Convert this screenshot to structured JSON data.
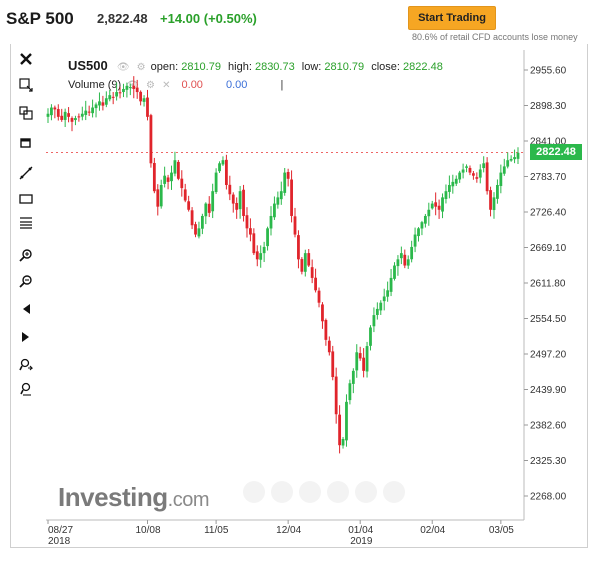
{
  "header": {
    "title": "S&P 500",
    "price": "2,822.48",
    "change": "+14.00 (+0.50%)",
    "cta_label": "Start Trading",
    "disclaimer": "80.6% of retail CFD accounts lose money"
  },
  "legend": {
    "symbol": "US500",
    "open_label": "open:",
    "open_value": "2810.79",
    "high_label": "high:",
    "high_value": "2830.73",
    "low_label": "low:",
    "low_value": "2810.79",
    "close_label": "close:",
    "close_value": "2822.48",
    "volume_label": "Volume (9)",
    "volume_v1": "0.00",
    "volume_v2": "0.00"
  },
  "toolbar": {
    "icons": [
      "close-icon",
      "crosshair-icon",
      "compare-icon",
      "trendline-icon",
      "rectangle-icon",
      "fibonacci-icon",
      "zoom-in-icon",
      "zoom-out-icon",
      "scroll-left-icon",
      "scroll-right-icon",
      "reset-zoom-icon",
      "fit-icon"
    ]
  },
  "current_price_tag": "2822.48",
  "watermark": {
    "brand": "Investing",
    "suffix": ".com"
  },
  "colors": {
    "up": "#2bb84b",
    "down": "#e0242b",
    "accent": "#f6a623",
    "tag": "#2bb84b"
  },
  "chart_data": {
    "type": "candlestick",
    "y_ticks": [
      "2955.60",
      "2898.30",
      "2841.00",
      "2783.70",
      "2726.40",
      "2669.10",
      "2611.80",
      "2554.50",
      "2497.20",
      "2439.90",
      "2382.60",
      "2325.30",
      "2268.00"
    ],
    "ylim": [
      2268.0,
      2955.6
    ],
    "x_ticks": [
      {
        "label": "08/27",
        "sub": "2018",
        "idx": 0
      },
      {
        "label": "10/08",
        "sub": "",
        "idx": 29
      },
      {
        "label": "11/05",
        "sub": "",
        "idx": 49
      },
      {
        "label": "12/04",
        "sub": "",
        "idx": 70
      },
      {
        "label": "01/04",
        "sub": "2019",
        "idx": 91
      },
      {
        "label": "02/04",
        "sub": "",
        "idx": 112
      },
      {
        "label": "03/05",
        "sub": "",
        "idx": 132
      }
    ],
    "closes": [
      2885,
      2895,
      2892,
      2880,
      2875,
      2888,
      2880,
      2872,
      2878,
      2880,
      2885,
      2890,
      2888,
      2895,
      2900,
      2905,
      2898,
      2910,
      2915,
      2912,
      2920,
      2918,
      2925,
      2930,
      2928,
      2925,
      2920,
      2905,
      2910,
      2880,
      2805,
      2760,
      2735,
      2770,
      2785,
      2775,
      2790,
      2810,
      2780,
      2765,
      2745,
      2730,
      2705,
      2690,
      2700,
      2720,
      2740,
      2725,
      2760,
      2790,
      2805,
      2810,
      2770,
      2755,
      2740,
      2730,
      2760,
      2720,
      2700,
      2690,
      2660,
      2650,
      2660,
      2670,
      2700,
      2720,
      2740,
      2750,
      2760,
      2790,
      2780,
      2720,
      2690,
      2650,
      2630,
      2660,
      2640,
      2620,
      2600,
      2580,
      2550,
      2520,
      2500,
      2460,
      2400,
      2350,
      2360,
      2420,
      2450,
      2470,
      2500,
      2490,
      2470,
      2510,
      2540,
      2560,
      2570,
      2580,
      2590,
      2600,
      2620,
      2640,
      2650,
      2660,
      2640,
      2650,
      2670,
      2690,
      2700,
      2710,
      2720,
      2730,
      2740,
      2735,
      2730,
      2750,
      2760,
      2770,
      2775,
      2780,
      2790,
      2795,
      2800,
      2790,
      2785,
      2780,
      2795,
      2805,
      2760,
      2730,
      2750,
      2770,
      2790,
      2800,
      2810,
      2812,
      2815,
      2822
    ]
  }
}
